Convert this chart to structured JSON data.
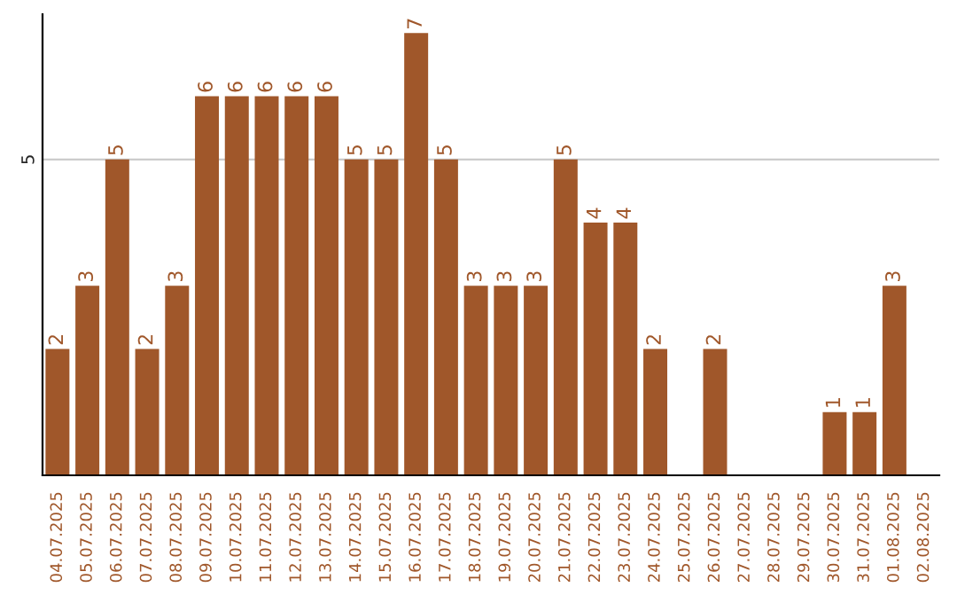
{
  "chart_data": {
    "type": "bar",
    "categories": [
      "04.07.2025",
      "05.07.2025",
      "06.07.2025",
      "07.07.2025",
      "08.07.2025",
      "09.07.2025",
      "10.07.2025",
      "11.07.2025",
      "12.07.2025",
      "13.07.2025",
      "14.07.2025",
      "15.07.2025",
      "16.07.2025",
      "17.07.2025",
      "18.07.2025",
      "19.07.2025",
      "20.07.2025",
      "21.07.2025",
      "22.07.2025",
      "23.07.2025",
      "24.07.2025",
      "25.07.2025",
      "26.07.2025",
      "27.07.2025",
      "28.07.2025",
      "29.07.2025",
      "30.07.2025",
      "31.07.2025",
      "01.08.2025",
      "02.08.2025"
    ],
    "values": [
      2,
      3,
      5,
      2,
      3,
      6,
      6,
      6,
      6,
      6,
      5,
      5,
      7,
      5,
      3,
      3,
      3,
      5,
      4,
      4,
      2,
      null,
      2,
      null,
      null,
      null,
      1,
      1,
      3,
      null
    ],
    "value_labels": [
      "2",
      "3",
      "5",
      "2",
      "3",
      "6",
      "6",
      "6",
      "6",
      "6",
      "5",
      "5",
      "7",
      "5",
      "3",
      "3",
      "3",
      "5",
      "4",
      "4",
      "2",
      null,
      "2",
      null,
      null,
      null,
      "1",
      "1",
      "3",
      null
    ],
    "color": "#a0572a",
    "ylim": [
      0,
      7.3
    ],
    "yticks": [
      5
    ],
    "grid": "y"
  }
}
